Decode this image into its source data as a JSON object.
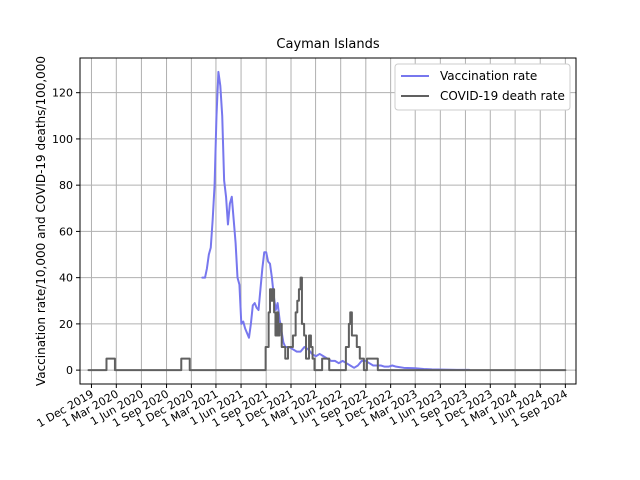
{
  "chart_data": {
    "type": "line",
    "title": "Cayman Islands",
    "xlabel": "",
    "ylabel": "Vaccination rate/10,000 and COVID-19 deaths/100,000",
    "ylim": [
      -6,
      135
    ],
    "xlim": [
      "2019-10-20",
      "2024-10-10"
    ],
    "grid": true,
    "legend_position": "top-right",
    "y_ticks": [
      0,
      20,
      40,
      60,
      80,
      100,
      120
    ],
    "x_ticks": [
      {
        "date": "2019-12-01",
        "label": "1 Dec 2019"
      },
      {
        "date": "2020-03-01",
        "label": "1 Mar 2020"
      },
      {
        "date": "2020-06-01",
        "label": "1 Jun 2020"
      },
      {
        "date": "2020-09-01",
        "label": "1 Sep 2020"
      },
      {
        "date": "2020-12-01",
        "label": "1 Dec 2020"
      },
      {
        "date": "2021-03-01",
        "label": "1 Mar 2021"
      },
      {
        "date": "2021-06-01",
        "label": "1 Jun 2021"
      },
      {
        "date": "2021-09-01",
        "label": "1 Sep 2021"
      },
      {
        "date": "2021-12-01",
        "label": "1 Dec 2021"
      },
      {
        "date": "2022-03-01",
        "label": "1 Mar 2022"
      },
      {
        "date": "2022-06-01",
        "label": "1 Jun 2022"
      },
      {
        "date": "2022-09-01",
        "label": "1 Sep 2022"
      },
      {
        "date": "2022-12-01",
        "label": "1 Dec 2022"
      },
      {
        "date": "2023-03-01",
        "label": "1 Mar 2023"
      },
      {
        "date": "2023-06-01",
        "label": "1 Jun 2023"
      },
      {
        "date": "2023-09-01",
        "label": "1 Sep 2023"
      },
      {
        "date": "2023-12-01",
        "label": "1 Dec 2023"
      },
      {
        "date": "2024-03-01",
        "label": "1 Mar 2024"
      },
      {
        "date": "2024-06-01",
        "label": "1 Jun 2024"
      },
      {
        "date": "2024-09-01",
        "label": "1 Sep 2024"
      }
    ],
    "series": [
      {
        "name": "Vaccination rate",
        "color": "#7777ee",
        "points": [
          [
            "2021-01-10",
            40
          ],
          [
            "2021-01-20",
            40
          ],
          [
            "2021-01-27",
            44
          ],
          [
            "2021-02-03",
            50
          ],
          [
            "2021-02-10",
            53
          ],
          [
            "2021-02-17",
            65
          ],
          [
            "2021-02-24",
            80
          ],
          [
            "2021-03-03",
            110
          ],
          [
            "2021-03-10",
            129
          ],
          [
            "2021-03-17",
            123
          ],
          [
            "2021-03-24",
            110
          ],
          [
            "2021-03-31",
            82
          ],
          [
            "2021-04-07",
            75
          ],
          [
            "2021-04-14",
            63
          ],
          [
            "2021-04-21",
            72
          ],
          [
            "2021-04-28",
            75
          ],
          [
            "2021-05-05",
            65
          ],
          [
            "2021-05-12",
            55
          ],
          [
            "2021-05-19",
            40
          ],
          [
            "2021-05-26",
            37
          ],
          [
            "2021-06-02",
            20
          ],
          [
            "2021-06-09",
            21
          ],
          [
            "2021-06-16",
            18
          ],
          [
            "2021-06-23",
            16
          ],
          [
            "2021-06-30",
            14
          ],
          [
            "2021-07-07",
            20
          ],
          [
            "2021-07-14",
            28
          ],
          [
            "2021-07-21",
            29
          ],
          [
            "2021-07-28",
            27
          ],
          [
            "2021-08-04",
            26
          ],
          [
            "2021-08-11",
            35
          ],
          [
            "2021-08-18",
            44
          ],
          [
            "2021-08-25",
            51
          ],
          [
            "2021-09-01",
            51
          ],
          [
            "2021-09-08",
            47
          ],
          [
            "2021-09-15",
            46
          ],
          [
            "2021-09-22",
            40
          ],
          [
            "2021-09-29",
            32
          ],
          [
            "2021-10-06",
            26
          ],
          [
            "2021-10-13",
            29
          ],
          [
            "2021-10-20",
            22
          ],
          [
            "2021-10-27",
            17
          ],
          [
            "2021-11-03",
            12
          ],
          [
            "2021-11-10",
            10
          ],
          [
            "2021-11-24",
            10
          ],
          [
            "2021-12-08",
            9
          ],
          [
            "2021-12-22",
            8
          ],
          [
            "2022-01-05",
            8
          ],
          [
            "2022-01-19",
            10
          ],
          [
            "2022-02-02",
            9
          ],
          [
            "2022-02-16",
            7
          ],
          [
            "2022-03-02",
            6
          ],
          [
            "2022-03-16",
            7
          ],
          [
            "2022-03-30",
            6
          ],
          [
            "2022-04-13",
            5
          ],
          [
            "2022-04-27",
            4
          ],
          [
            "2022-05-11",
            4
          ],
          [
            "2022-05-25",
            3
          ],
          [
            "2022-06-08",
            4
          ],
          [
            "2022-06-22",
            3
          ],
          [
            "2022-07-06",
            2
          ],
          [
            "2022-07-20",
            1
          ],
          [
            "2022-08-03",
            2
          ],
          [
            "2022-08-17",
            4
          ],
          [
            "2022-08-31",
            4
          ],
          [
            "2022-09-14",
            3
          ],
          [
            "2022-09-28",
            2
          ],
          [
            "2022-10-12",
            2
          ],
          [
            "2022-10-26",
            2
          ],
          [
            "2022-11-09",
            1.5
          ],
          [
            "2022-11-23",
            1.5
          ],
          [
            "2022-12-07",
            2
          ],
          [
            "2022-12-21",
            1.5
          ],
          [
            "2023-01-18",
            1
          ],
          [
            "2023-03-01",
            0.8
          ],
          [
            "2023-04-01",
            0.5
          ],
          [
            "2023-05-01",
            0.3
          ],
          [
            "2023-06-15",
            0.2
          ],
          [
            "2023-08-01",
            0.1
          ],
          [
            "2023-09-15",
            0.1
          ]
        ]
      },
      {
        "name": "COVID-19 death rate",
        "color": "#606060",
        "step": true,
        "points": [
          [
            "2019-11-20",
            0
          ],
          [
            "2020-01-25",
            5
          ],
          [
            "2020-02-25",
            0
          ],
          [
            "2020-10-25",
            5
          ],
          [
            "2020-11-25",
            0
          ],
          [
            "2021-08-30",
            10
          ],
          [
            "2021-09-10",
            25
          ],
          [
            "2021-09-15",
            35
          ],
          [
            "2021-09-20",
            30
          ],
          [
            "2021-09-25",
            35
          ],
          [
            "2021-09-30",
            25
          ],
          [
            "2021-10-05",
            15
          ],
          [
            "2021-10-10",
            25
          ],
          [
            "2021-10-15",
            15
          ],
          [
            "2021-10-20",
            20
          ],
          [
            "2021-10-28",
            10
          ],
          [
            "2021-11-10",
            5
          ],
          [
            "2021-11-20",
            10
          ],
          [
            "2021-12-08",
            15
          ],
          [
            "2021-12-18",
            25
          ],
          [
            "2021-12-24",
            30
          ],
          [
            "2021-12-30",
            35
          ],
          [
            "2022-01-05",
            40
          ],
          [
            "2022-01-10",
            20
          ],
          [
            "2022-01-18",
            15
          ],
          [
            "2022-01-25",
            5
          ],
          [
            "2022-02-05",
            15
          ],
          [
            "2022-02-12",
            10
          ],
          [
            "2022-02-18",
            5
          ],
          [
            "2022-02-25",
            0
          ],
          [
            "2022-03-25",
            5
          ],
          [
            "2022-04-20",
            0
          ],
          [
            "2022-06-20",
            10
          ],
          [
            "2022-07-01",
            20
          ],
          [
            "2022-07-06",
            25
          ],
          [
            "2022-07-12",
            15
          ],
          [
            "2022-07-30",
            10
          ],
          [
            "2022-08-10",
            5
          ],
          [
            "2022-08-25",
            0
          ],
          [
            "2022-09-05",
            5
          ],
          [
            "2022-10-15",
            0
          ],
          [
            "2024-09-01",
            0
          ]
        ]
      }
    ]
  }
}
